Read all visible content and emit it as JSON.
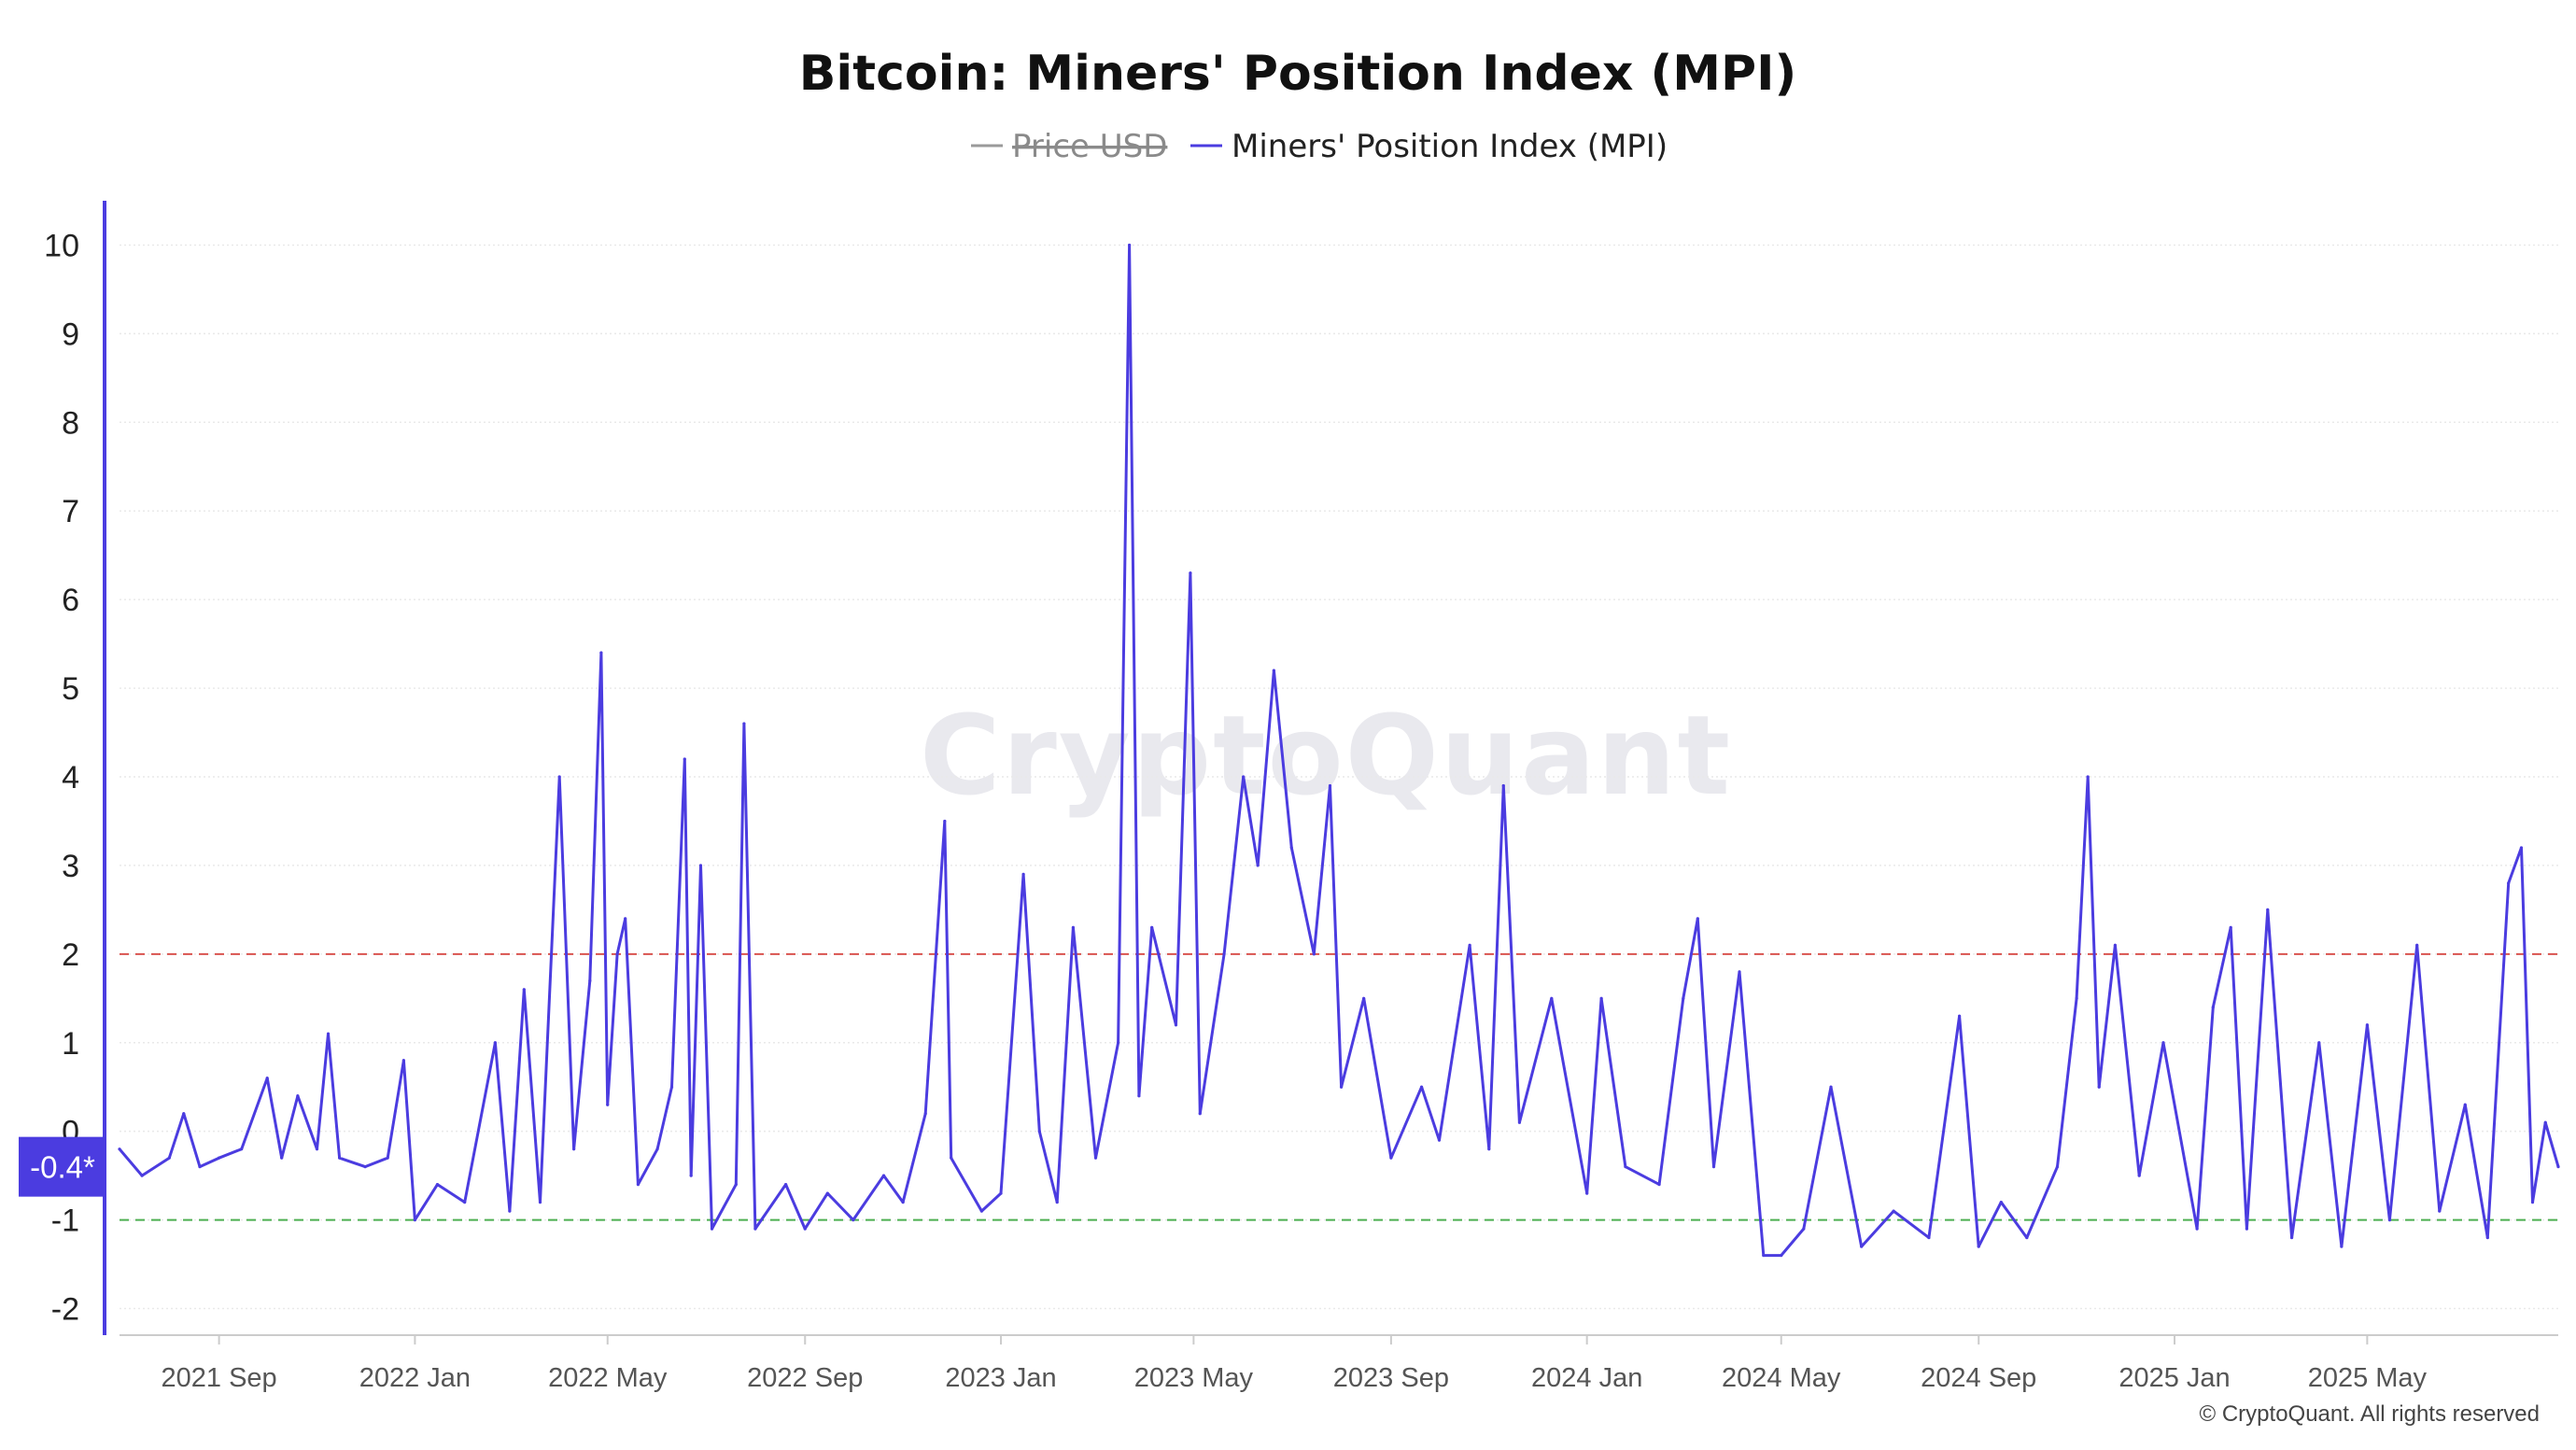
{
  "chart_data": {
    "type": "line",
    "title": "Bitcoin: Miners' Position Index (MPI)",
    "legend": [
      {
        "label": "Price USD",
        "color": "#9a9a9a",
        "hidden": true
      },
      {
        "label": "Miners' Position Index (MPI)",
        "color": "#4b3ce0",
        "hidden": false
      }
    ],
    "legend_position": "top-center",
    "ylim": [
      -2.3,
      10.5
    ],
    "yticks": [
      "10",
      "9",
      "8",
      "7",
      "6",
      "5",
      "4",
      "3",
      "2",
      "1",
      "0",
      "-1",
      "-2"
    ],
    "ytick_values": [
      10,
      9,
      8,
      7,
      6,
      5,
      4,
      3,
      2,
      1,
      0,
      -1,
      -2
    ],
    "xlim": [
      "2021-07-01",
      "2025-08-28"
    ],
    "xticks": [
      {
        "label": "2021 Sep",
        "date": "2021-09-01"
      },
      {
        "label": "2022 Jan",
        "date": "2022-01-01"
      },
      {
        "label": "2022 May",
        "date": "2022-05-01"
      },
      {
        "label": "2022 Sep",
        "date": "2022-09-01"
      },
      {
        "label": "2023 Jan",
        "date": "2023-01-01"
      },
      {
        "label": "2023 May",
        "date": "2023-05-01"
      },
      {
        "label": "2023 Sep",
        "date": "2023-09-01"
      },
      {
        "label": "2024 Jan",
        "date": "2024-01-01"
      },
      {
        "label": "2024 May",
        "date": "2024-05-01"
      },
      {
        "label": "2024 Sep",
        "date": "2024-09-01"
      },
      {
        "label": "2025 Jan",
        "date": "2025-01-01"
      },
      {
        "label": "2025 May",
        "date": "2025-05-01"
      }
    ],
    "reference_lines": [
      {
        "value": 2,
        "color": "#d9534f",
        "style": "dashed"
      },
      {
        "value": -1,
        "color": "#4caf50",
        "style": "dashed"
      }
    ],
    "current_value_label": "-0.4*",
    "grid": true,
    "series": [
      {
        "name": "Miners' Position Index (MPI)",
        "color": "#4b3ce0",
        "points": [
          [
            "2021-07-01",
            -0.2
          ],
          [
            "2021-07-15",
            -0.5
          ],
          [
            "2021-08-01",
            -0.3
          ],
          [
            "2021-08-10",
            0.2
          ],
          [
            "2021-08-20",
            -0.4
          ],
          [
            "2021-09-01",
            -0.3
          ],
          [
            "2021-09-15",
            -0.2
          ],
          [
            "2021-10-01",
            0.6
          ],
          [
            "2021-10-10",
            -0.3
          ],
          [
            "2021-10-20",
            0.4
          ],
          [
            "2021-11-01",
            -0.2
          ],
          [
            "2021-11-08",
            1.1
          ],
          [
            "2021-11-15",
            -0.3
          ],
          [
            "2021-12-01",
            -0.4
          ],
          [
            "2021-12-15",
            -0.3
          ],
          [
            "2021-12-25",
            0.8
          ],
          [
            "2022-01-01",
            -1.0
          ],
          [
            "2022-01-15",
            -0.6
          ],
          [
            "2022-02-01",
            -0.8
          ],
          [
            "2022-02-20",
            1.0
          ],
          [
            "2022-03-01",
            -0.9
          ],
          [
            "2022-03-10",
            1.6
          ],
          [
            "2022-03-20",
            -0.8
          ],
          [
            "2022-04-01",
            4.0
          ],
          [
            "2022-04-10",
            -0.2
          ],
          [
            "2022-04-20",
            1.7
          ],
          [
            "2022-04-27",
            5.4
          ],
          [
            "2022-05-01",
            0.3
          ],
          [
            "2022-05-07",
            2.0
          ],
          [
            "2022-05-12",
            2.4
          ],
          [
            "2022-05-20",
            -0.6
          ],
          [
            "2022-06-01",
            -0.2
          ],
          [
            "2022-06-10",
            0.5
          ],
          [
            "2022-06-18",
            4.2
          ],
          [
            "2022-06-22",
            -0.5
          ],
          [
            "2022-06-28",
            3.0
          ],
          [
            "2022-07-05",
            -1.1
          ],
          [
            "2022-07-20",
            -0.6
          ],
          [
            "2022-07-25",
            4.6
          ],
          [
            "2022-08-01",
            -1.1
          ],
          [
            "2022-08-20",
            -0.6
          ],
          [
            "2022-09-01",
            -1.1
          ],
          [
            "2022-09-15",
            -0.7
          ],
          [
            "2022-10-01",
            -1.0
          ],
          [
            "2022-10-20",
            -0.5
          ],
          [
            "2022-11-01",
            -0.8
          ],
          [
            "2022-11-15",
            0.2
          ],
          [
            "2022-11-27",
            3.5
          ],
          [
            "2022-12-01",
            -0.3
          ],
          [
            "2022-12-20",
            -0.9
          ],
          [
            "2023-01-01",
            -0.7
          ],
          [
            "2023-01-15",
            2.9
          ],
          [
            "2023-01-25",
            0.0
          ],
          [
            "2023-02-05",
            -0.8
          ],
          [
            "2023-02-15",
            2.3
          ],
          [
            "2023-03-01",
            -0.3
          ],
          [
            "2023-03-15",
            1.0
          ],
          [
            "2023-03-22",
            10.0
          ],
          [
            "2023-03-28",
            0.4
          ],
          [
            "2023-04-05",
            2.3
          ],
          [
            "2023-04-20",
            1.2
          ],
          [
            "2023-04-29",
            6.3
          ],
          [
            "2023-05-05",
            0.2
          ],
          [
            "2023-05-20",
            2.0
          ],
          [
            "2023-06-01",
            4.0
          ],
          [
            "2023-06-10",
            3.0
          ],
          [
            "2023-06-20",
            5.2
          ],
          [
            "2023-07-01",
            3.2
          ],
          [
            "2023-07-15",
            2.0
          ],
          [
            "2023-07-25",
            3.9
          ],
          [
            "2023-08-01",
            0.5
          ],
          [
            "2023-08-15",
            1.5
          ],
          [
            "2023-09-01",
            -0.3
          ],
          [
            "2023-09-20",
            0.5
          ],
          [
            "2023-10-01",
            -0.1
          ],
          [
            "2023-10-20",
            2.1
          ],
          [
            "2023-11-01",
            -0.2
          ],
          [
            "2023-11-10",
            3.9
          ],
          [
            "2023-11-20",
            0.1
          ],
          [
            "2023-12-10",
            1.5
          ],
          [
            "2024-01-01",
            -0.7
          ],
          [
            "2024-01-10",
            1.5
          ],
          [
            "2024-01-25",
            -0.4
          ],
          [
            "2024-02-15",
            -0.6
          ],
          [
            "2024-03-01",
            1.5
          ],
          [
            "2024-03-10",
            2.4
          ],
          [
            "2024-03-20",
            -0.4
          ],
          [
            "2024-04-05",
            1.8
          ],
          [
            "2024-04-20",
            -1.4
          ],
          [
            "2024-05-01",
            -1.4
          ],
          [
            "2024-05-15",
            -1.1
          ],
          [
            "2024-06-01",
            0.5
          ],
          [
            "2024-06-20",
            -1.3
          ],
          [
            "2024-07-10",
            -0.9
          ],
          [
            "2024-08-01",
            -1.2
          ],
          [
            "2024-08-20",
            1.3
          ],
          [
            "2024-09-01",
            -1.3
          ],
          [
            "2024-09-15",
            -0.8
          ],
          [
            "2024-10-01",
            -1.2
          ],
          [
            "2024-10-20",
            -0.4
          ],
          [
            "2024-11-01",
            1.5
          ],
          [
            "2024-11-08",
            4.0
          ],
          [
            "2024-11-15",
            0.5
          ],
          [
            "2024-11-25",
            2.1
          ],
          [
            "2024-12-10",
            -0.5
          ],
          [
            "2024-12-25",
            1.0
          ],
          [
            "2025-01-15",
            -1.1
          ],
          [
            "2025-01-25",
            1.4
          ],
          [
            "2025-02-05",
            2.3
          ],
          [
            "2025-02-15",
            -1.1
          ],
          [
            "2025-02-28",
            2.5
          ],
          [
            "2025-03-15",
            -1.2
          ],
          [
            "2025-04-01",
            1.0
          ],
          [
            "2025-04-15",
            -1.3
          ],
          [
            "2025-05-01",
            1.2
          ],
          [
            "2025-05-15",
            -1.0
          ],
          [
            "2025-06-01",
            2.1
          ],
          [
            "2025-06-15",
            -0.9
          ],
          [
            "2025-07-01",
            0.3
          ],
          [
            "2025-07-15",
            -1.2
          ],
          [
            "2025-07-28",
            2.8
          ],
          [
            "2025-08-05",
            3.2
          ],
          [
            "2025-08-12",
            -0.8
          ],
          [
            "2025-08-20",
            0.1
          ],
          [
            "2025-08-28",
            -0.4
          ]
        ]
      }
    ]
  },
  "watermark": "CryptoQuant",
  "footer": "© CryptoQuant. All rights reserved"
}
